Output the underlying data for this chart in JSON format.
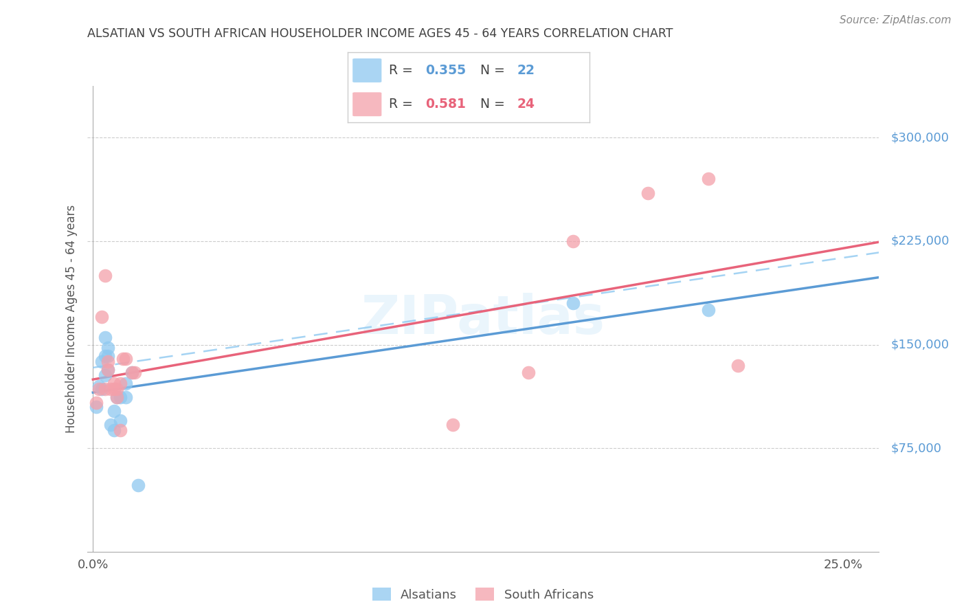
{
  "title": "ALSATIAN VS SOUTH AFRICAN HOUSEHOLDER INCOME AGES 45 - 64 YEARS CORRELATION CHART",
  "source": "Source: ZipAtlas.com",
  "ylabel": "Householder Income Ages 45 - 64 years",
  "ytick_labels": [
    "$75,000",
    "$150,000",
    "$225,000",
    "$300,000"
  ],
  "ytick_values": [
    75000,
    150000,
    225000,
    300000
  ],
  "ymin": 0,
  "ymax": 337500,
  "xmin": -0.002,
  "xmax": 0.262,
  "legend_blue_R": "0.355",
  "legend_blue_N": "22",
  "legend_pink_R": "0.581",
  "legend_pink_N": "24",
  "watermark": "ZIPatlas",
  "blue_color": "#8EC8F0",
  "pink_color": "#F4A0AA",
  "blue_line_color": "#5B9BD5",
  "pink_line_color": "#E8637A",
  "dashed_line_color": "#8EC8F0",
  "title_color": "#404040",
  "ytick_color": "#5B9BD5",
  "alsatian_x": [
    0.001,
    0.002,
    0.003,
    0.003,
    0.004,
    0.004,
    0.004,
    0.005,
    0.005,
    0.005,
    0.006,
    0.007,
    0.007,
    0.008,
    0.009,
    0.009,
    0.011,
    0.011,
    0.013,
    0.015,
    0.16,
    0.205
  ],
  "alsatian_y": [
    105000,
    120000,
    118000,
    138000,
    128000,
    142000,
    155000,
    132000,
    148000,
    142000,
    92000,
    88000,
    102000,
    112000,
    112000,
    95000,
    122000,
    112000,
    130000,
    48000,
    180000,
    175000
  ],
  "south_african_x": [
    0.001,
    0.002,
    0.003,
    0.004,
    0.004,
    0.005,
    0.005,
    0.006,
    0.007,
    0.007,
    0.008,
    0.008,
    0.009,
    0.009,
    0.01,
    0.011,
    0.013,
    0.014,
    0.12,
    0.145,
    0.16,
    0.185,
    0.205,
    0.215
  ],
  "south_african_y": [
    108000,
    118000,
    170000,
    118000,
    200000,
    132000,
    138000,
    118000,
    122000,
    118000,
    118000,
    112000,
    88000,
    122000,
    140000,
    140000,
    130000,
    130000,
    92000,
    130000,
    225000,
    260000,
    270000,
    135000
  ]
}
